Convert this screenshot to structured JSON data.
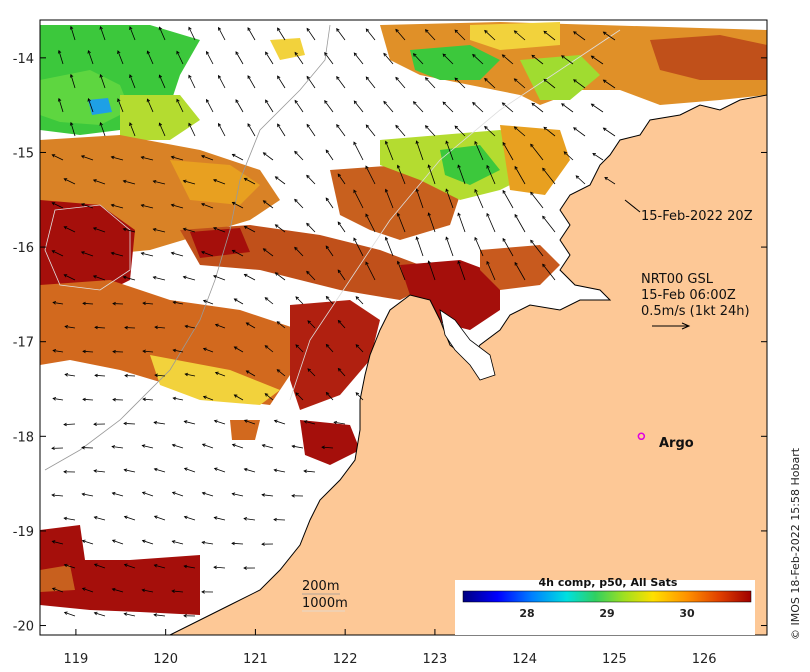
{
  "map": {
    "lon_range": [
      118.6,
      126.7
    ],
    "lat_range": [
      -20.1,
      -13.6
    ],
    "x_ticks": [
      119,
      120,
      121,
      122,
      123,
      124,
      125,
      126
    ],
    "y_ticks": [
      -14,
      -15,
      -16,
      -17,
      -18,
      -19,
      -20
    ],
    "x_tick_labels": [
      "119",
      "120",
      "121",
      "122",
      "123",
      "124",
      "125",
      "126"
    ],
    "y_tick_labels": [
      "-14",
      "-15",
      "-16",
      "-17",
      "-18",
      "-19",
      "-20"
    ],
    "colors": {
      "land": "#fdc896",
      "cloud_gap": "#ffffff",
      "warm_dark": "#a50f0b",
      "warm": "#d2691e",
      "orange": "#e8a020",
      "yellow": "#f2d23c",
      "green": "#3cc83c",
      "cyan": "#1ea0e6",
      "arrow": "#000000",
      "argo": "#e000e0"
    }
  },
  "annotations": {
    "overpass_label": "15-Feb-2022 20Z",
    "current_source": "NRT00 GSL",
    "current_time": "15-Feb 06:00Z",
    "current_scale": "0.5m/s (1kt 24h)",
    "argo_label": "Argo",
    "isobath_1": "200m",
    "isobath_2": "1000m",
    "credit": "© IMOS 18-Feb-2022 15:58 Hobart"
  },
  "colorbar": {
    "title": "4h comp, p50, All Sats",
    "ticks": [
      "28",
      "29",
      "30"
    ],
    "tick_values": [
      28,
      29,
      30
    ],
    "range": [
      27.2,
      30.8
    ],
    "stops": [
      "#00007f",
      "#0000ff",
      "#0080ff",
      "#00e0e0",
      "#30d060",
      "#a0e020",
      "#ffe000",
      "#ff9000",
      "#e04000",
      "#a00000"
    ]
  },
  "argo": {
    "lon": 125.3,
    "lat": -18.0
  }
}
